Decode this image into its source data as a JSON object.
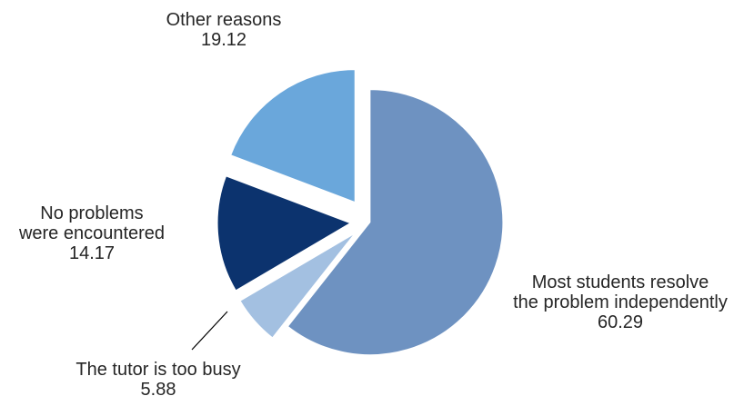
{
  "chart_data": {
    "type": "pie",
    "title": "",
    "slices": [
      {
        "label_lines": [
          "Most students resolve",
          "the problem independently"
        ],
        "value": 60.29,
        "value_text": "60.29",
        "color": "#6e92c1"
      },
      {
        "label_lines": [
          "The tutor is too busy"
        ],
        "value": 5.88,
        "value_text": "5.88",
        "color": "#a3c0e1"
      },
      {
        "label_lines": [
          "No problems",
          "were encountered"
        ],
        "value": 14.17,
        "value_text": "14.17",
        "color": "#0c336e"
      },
      {
        "label_lines": [
          "Other reasons"
        ],
        "value": 19.12,
        "value_text": "19.12",
        "color": "#6aa7db"
      }
    ],
    "start_angle_deg": 0,
    "direction": "clockwise",
    "exploded": true,
    "legend": "none",
    "label_position": "outside"
  }
}
